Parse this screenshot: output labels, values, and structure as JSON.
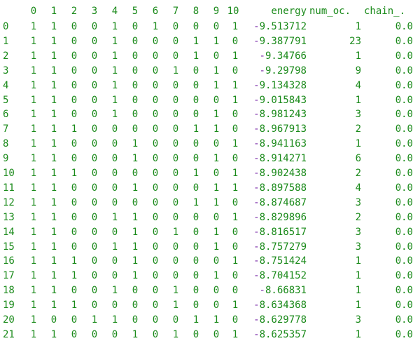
{
  "table": {
    "columns": [
      "0",
      "1",
      "2",
      "3",
      "4",
      "5",
      "6",
      "7",
      "8",
      "9",
      "10",
      "energy",
      "num_oc.",
      "chain_."
    ],
    "rows": [
      {
        "idx": "0",
        "bits": [
          "1",
          "1",
          "0",
          "0",
          "1",
          "0",
          "1",
          "0",
          "0",
          "0",
          "1"
        ],
        "energy": "-9.513712",
        "num_oc": "1",
        "chain": "0.0"
      },
      {
        "idx": "1",
        "bits": [
          "1",
          "1",
          "0",
          "0",
          "1",
          "0",
          "0",
          "0",
          "1",
          "1",
          "0"
        ],
        "energy": "-9.387791",
        "num_oc": "23",
        "chain": "0.0"
      },
      {
        "idx": "2",
        "bits": [
          "1",
          "1",
          "0",
          "0",
          "1",
          "0",
          "0",
          "0",
          "1",
          "0",
          "1"
        ],
        "energy": "-9.34766",
        "num_oc": "1",
        "chain": "0.0"
      },
      {
        "idx": "3",
        "bits": [
          "1",
          "1",
          "0",
          "0",
          "1",
          "0",
          "0",
          "1",
          "0",
          "1",
          "0"
        ],
        "energy": "-9.29798",
        "num_oc": "9",
        "chain": "0.0"
      },
      {
        "idx": "4",
        "bits": [
          "1",
          "1",
          "0",
          "0",
          "1",
          "0",
          "0",
          "0",
          "0",
          "1",
          "1"
        ],
        "energy": "-9.134328",
        "num_oc": "4",
        "chain": "0.0"
      },
      {
        "idx": "5",
        "bits": [
          "1",
          "1",
          "0",
          "0",
          "1",
          "0",
          "0",
          "0",
          "0",
          "0",
          "1"
        ],
        "energy": "-9.015843",
        "num_oc": "1",
        "chain": "0.0"
      },
      {
        "idx": "6",
        "bits": [
          "1",
          "1",
          "0",
          "0",
          "1",
          "0",
          "0",
          "0",
          "0",
          "1",
          "0"
        ],
        "energy": "-8.981243",
        "num_oc": "3",
        "chain": "0.0"
      },
      {
        "idx": "7",
        "bits": [
          "1",
          "1",
          "1",
          "0",
          "0",
          "0",
          "0",
          "0",
          "1",
          "1",
          "0"
        ],
        "energy": "-8.967913",
        "num_oc": "2",
        "chain": "0.0"
      },
      {
        "idx": "8",
        "bits": [
          "1",
          "1",
          "0",
          "0",
          "0",
          "1",
          "0",
          "0",
          "0",
          "0",
          "1"
        ],
        "energy": "-8.941163",
        "num_oc": "1",
        "chain": "0.0"
      },
      {
        "idx": "9",
        "bits": [
          "1",
          "1",
          "0",
          "0",
          "0",
          "1",
          "0",
          "0",
          "0",
          "1",
          "0"
        ],
        "energy": "-8.914271",
        "num_oc": "6",
        "chain": "0.0"
      },
      {
        "idx": "10",
        "bits": [
          "1",
          "1",
          "1",
          "0",
          "0",
          "0",
          "0",
          "0",
          "1",
          "0",
          "1"
        ],
        "energy": "-8.902438",
        "num_oc": "2",
        "chain": "0.0"
      },
      {
        "idx": "11",
        "bits": [
          "1",
          "1",
          "0",
          "0",
          "0",
          "1",
          "0",
          "0",
          "0",
          "1",
          "1"
        ],
        "energy": "-8.897588",
        "num_oc": "4",
        "chain": "0.0"
      },
      {
        "idx": "12",
        "bits": [
          "1",
          "1",
          "0",
          "0",
          "0",
          "0",
          "0",
          "0",
          "1",
          "1",
          "0"
        ],
        "energy": "-8.874687",
        "num_oc": "3",
        "chain": "0.0"
      },
      {
        "idx": "13",
        "bits": [
          "1",
          "1",
          "0",
          "0",
          "1",
          "1",
          "0",
          "0",
          "0",
          "0",
          "1"
        ],
        "energy": "-8.829896",
        "num_oc": "2",
        "chain": "0.0"
      },
      {
        "idx": "14",
        "bits": [
          "1",
          "1",
          "0",
          "0",
          "0",
          "1",
          "0",
          "1",
          "0",
          "1",
          "0"
        ],
        "energy": "-8.816517",
        "num_oc": "3",
        "chain": "0.0"
      },
      {
        "idx": "15",
        "bits": [
          "1",
          "1",
          "0",
          "0",
          "1",
          "1",
          "0",
          "0",
          "0",
          "1",
          "0"
        ],
        "energy": "-8.757279",
        "num_oc": "3",
        "chain": "0.0"
      },
      {
        "idx": "16",
        "bits": [
          "1",
          "1",
          "1",
          "0",
          "0",
          "1",
          "0",
          "0",
          "0",
          "0",
          "1"
        ],
        "energy": "-8.751424",
        "num_oc": "1",
        "chain": "0.0"
      },
      {
        "idx": "17",
        "bits": [
          "1",
          "1",
          "1",
          "0",
          "0",
          "1",
          "0",
          "0",
          "0",
          "1",
          "0"
        ],
        "energy": "-8.704152",
        "num_oc": "1",
        "chain": "0.0"
      },
      {
        "idx": "18",
        "bits": [
          "1",
          "1",
          "0",
          "0",
          "1",
          "0",
          "0",
          "1",
          "0",
          "0",
          "0"
        ],
        "energy": "-8.66831",
        "num_oc": "1",
        "chain": "0.0"
      },
      {
        "idx": "19",
        "bits": [
          "1",
          "1",
          "1",
          "0",
          "0",
          "0",
          "0",
          "1",
          "0",
          "0",
          "1"
        ],
        "energy": "-8.634368",
        "num_oc": "1",
        "chain": "0.0"
      },
      {
        "idx": "20",
        "bits": [
          "1",
          "0",
          "0",
          "1",
          "1",
          "0",
          "0",
          "0",
          "1",
          "1",
          "0"
        ],
        "energy": "-8.629778",
        "num_oc": "3",
        "chain": "0.0"
      },
      {
        "idx": "21",
        "bits": [
          "1",
          "1",
          "0",
          "0",
          "0",
          "1",
          "0",
          "1",
          "0",
          "0",
          "1"
        ],
        "energy": "-8.625357",
        "num_oc": "1",
        "chain": "0.0"
      }
    ]
  },
  "colors": {
    "text": "#1a8a1a",
    "negative_sign": "#7a2aa8",
    "background": "#ffffff"
  }
}
